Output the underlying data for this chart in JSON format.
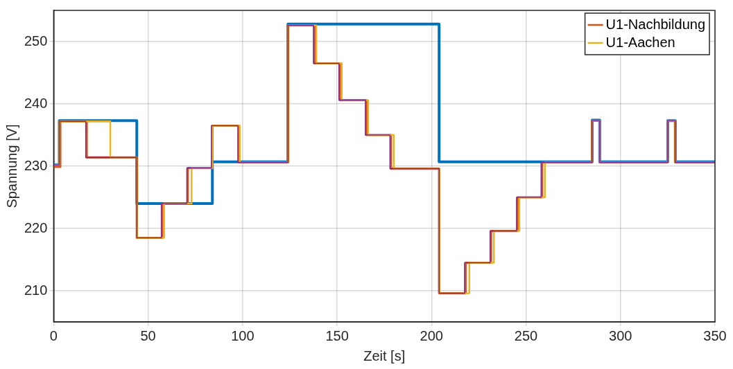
{
  "chart_data": {
    "type": "step",
    "xlabel": "Zeit [s]",
    "ylabel": "Spannung [V]",
    "xlim": [
      0,
      350
    ],
    "ylim": [
      205,
      255
    ],
    "xticks": [
      0,
      50,
      100,
      150,
      200,
      250,
      300,
      350
    ],
    "yticks": [
      210,
      220,
      230,
      240,
      250
    ],
    "grid": true,
    "legend": "top right",
    "line_style": "solid",
    "marker": "none",
    "series": [
      {
        "color": "#0072bd",
        "x": [
          0,
          3,
          44,
          84,
          124,
          204,
          285,
          289,
          325,
          329,
          350
        ],
        "values": [
          230.2,
          237.3,
          224,
          230.7,
          252.8,
          230.7,
          237.4,
          230.7,
          237.3,
          230.7,
          230.7
        ]
      },
      {
        "name": "U1-Nachbildung",
        "color": "#d95319",
        "x": [
          0,
          3.5,
          17.5,
          44,
          57.5,
          71,
          84,
          98,
          124,
          138,
          151.5,
          165.5,
          178.5,
          204,
          218,
          231.5,
          245.5,
          258.5,
          285,
          289,
          325,
          329,
          350
        ],
        "values": [
          229.9,
          237.2,
          231.4,
          218.5,
          224,
          229.7,
          236.5,
          230.6,
          252.6,
          246.5,
          240.6,
          235,
          229.6,
          209.6,
          214.5,
          219.6,
          225,
          230.6,
          237.3,
          230.6,
          237.3,
          230.6,
          230.6
        ]
      },
      {
        "name": "U1-Aachen",
        "color": "#edb120",
        "x": [
          0,
          3,
          30,
          44,
          58.5,
          73,
          84,
          98.5,
          124,
          139,
          152.5,
          166.5,
          180,
          204,
          220,
          233,
          246.5,
          260,
          285,
          289,
          325,
          329,
          350
        ],
        "values": [
          230.2,
          237.2,
          231.4,
          218.5,
          224,
          229.7,
          236.5,
          230.6,
          252.6,
          246.5,
          240.6,
          235,
          229.6,
          209.6,
          214.5,
          219.6,
          225,
          230.6,
          237.3,
          230.6,
          237.3,
          230.6,
          230.6
        ]
      },
      {
        "color": "#7e2f8e",
        "x": [
          0,
          3,
          17,
          44,
          57,
          70.5,
          83.5,
          97.5,
          124,
          137.5,
          151,
          165,
          178,
          204,
          217.5,
          231,
          245,
          258,
          285,
          289,
          325,
          329,
          350
        ],
        "values": [
          230.2,
          237.2,
          231.4,
          218.5,
          224,
          229.7,
          236.5,
          230.6,
          252.6,
          246.5,
          240.6,
          235,
          229.6,
          209.6,
          214.5,
          219.6,
          225,
          230.6,
          237.3,
          230.6,
          237.3,
          230.6,
          230.6
        ]
      }
    ]
  }
}
